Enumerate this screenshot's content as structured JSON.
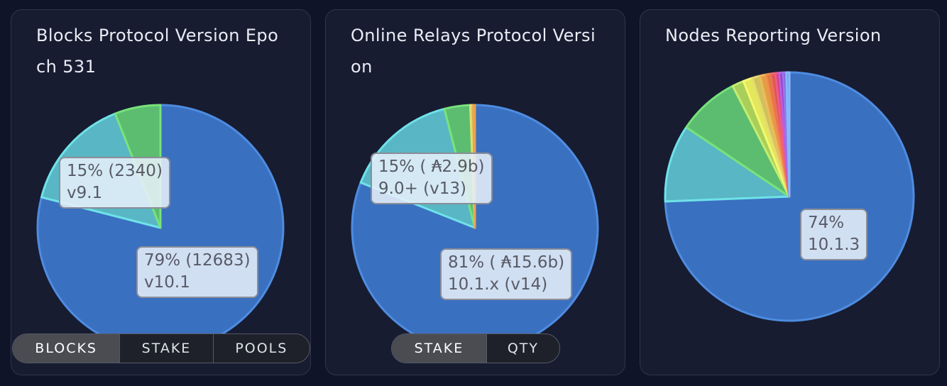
{
  "cards": [
    {
      "title": "Blocks Protocol Version Epoch 531",
      "toggle": [
        "BLOCKS",
        "STAKE",
        "POOLS"
      ],
      "active": 0,
      "tooltips": [
        {
          "line1": "15% (2340)",
          "line2": "v9.1"
        },
        {
          "line1": "79% (12683)",
          "line2": "v10.1"
        }
      ]
    },
    {
      "title": "Online Relays Protocol Version",
      "toggle": [
        "STAKE",
        "QTY"
      ],
      "active": 0,
      "tooltips": [
        {
          "line1": "15% ( ₳2.9b)",
          "line2": "9.0+ (v13)"
        },
        {
          "line1": "81% ( ₳15.6b)",
          "line2": "10.1.x (v14)"
        }
      ]
    },
    {
      "title": "Nodes Reporting Version",
      "toggle": [],
      "active": -1,
      "tooltips": [
        {
          "line1": "74%",
          "line2": "10.1.3"
        }
      ]
    }
  ],
  "chart_data": [
    {
      "type": "pie",
      "title": "Blocks Protocol Version Epoch 531",
      "slices": [
        {
          "label": "v10.1",
          "value": 79,
          "color": "#3a70c0",
          "stroke": "#4e8ce0"
        },
        {
          "label": "v9.1",
          "value": 15,
          "color": "#59b6c4",
          "stroke": "#6fe2e8"
        },
        {
          "label": "",
          "value": 6,
          "color": "#5cbd70",
          "stroke": "#78e27a"
        }
      ]
    },
    {
      "type": "pie",
      "title": "Online Relays Protocol Version",
      "slices": [
        {
          "label": "10.1.x (v14)",
          "value": 81,
          "color": "#3a70c0",
          "stroke": "#4e8ce0"
        },
        {
          "label": "9.0+ (v13)",
          "value": 15,
          "color": "#59b6c4",
          "stroke": "#6fe2e8"
        },
        {
          "label": "",
          "value": 3.4,
          "color": "#5cbd70",
          "stroke": "#78e27a"
        },
        {
          "label": "",
          "value": 0.4,
          "color": "#c9c45a",
          "stroke": "#e2dd70"
        },
        {
          "label": "",
          "value": 0.2,
          "color": "#e08a3a",
          "stroke": "#f0a050"
        }
      ]
    },
    {
      "type": "pie",
      "title": "Nodes Reporting Version",
      "slices": [
        {
          "label": "10.1.3",
          "value": 74,
          "color": "#3a70c0",
          "stroke": "#4e8ce0"
        },
        {
          "label": "",
          "value": 10,
          "color": "#59b6c4",
          "stroke": "#6fe2e8"
        },
        {
          "label": "",
          "value": 8,
          "color": "#5cbd70",
          "stroke": "#78e27a"
        },
        {
          "label": "",
          "value": 1.5,
          "color": "#a9cf5a",
          "stroke": "#c4ec70"
        },
        {
          "label": "",
          "value": 1.2,
          "color": "#e3e75a",
          "stroke": "#f4f870"
        },
        {
          "label": "",
          "value": 1.0,
          "color": "#cfc25a",
          "stroke": "#e6da70"
        },
        {
          "label": "",
          "value": 0.8,
          "color": "#e0a040",
          "stroke": "#f0b860"
        },
        {
          "label": "",
          "value": 0.6,
          "color": "#e07a3a",
          "stroke": "#f08e50"
        },
        {
          "label": "",
          "value": 0.6,
          "color": "#d85a4a",
          "stroke": "#ee6e5e"
        },
        {
          "label": "",
          "value": 0.5,
          "color": "#d8407a",
          "stroke": "#ee5a90"
        },
        {
          "label": "",
          "value": 0.5,
          "color": "#a040c8",
          "stroke": "#b860e0"
        },
        {
          "label": "",
          "value": 0.4,
          "color": "#7a60d8",
          "stroke": "#9078ee"
        },
        {
          "label": "",
          "value": 0.4,
          "color": "#70a0e8",
          "stroke": "#88b8f8"
        }
      ]
    }
  ]
}
